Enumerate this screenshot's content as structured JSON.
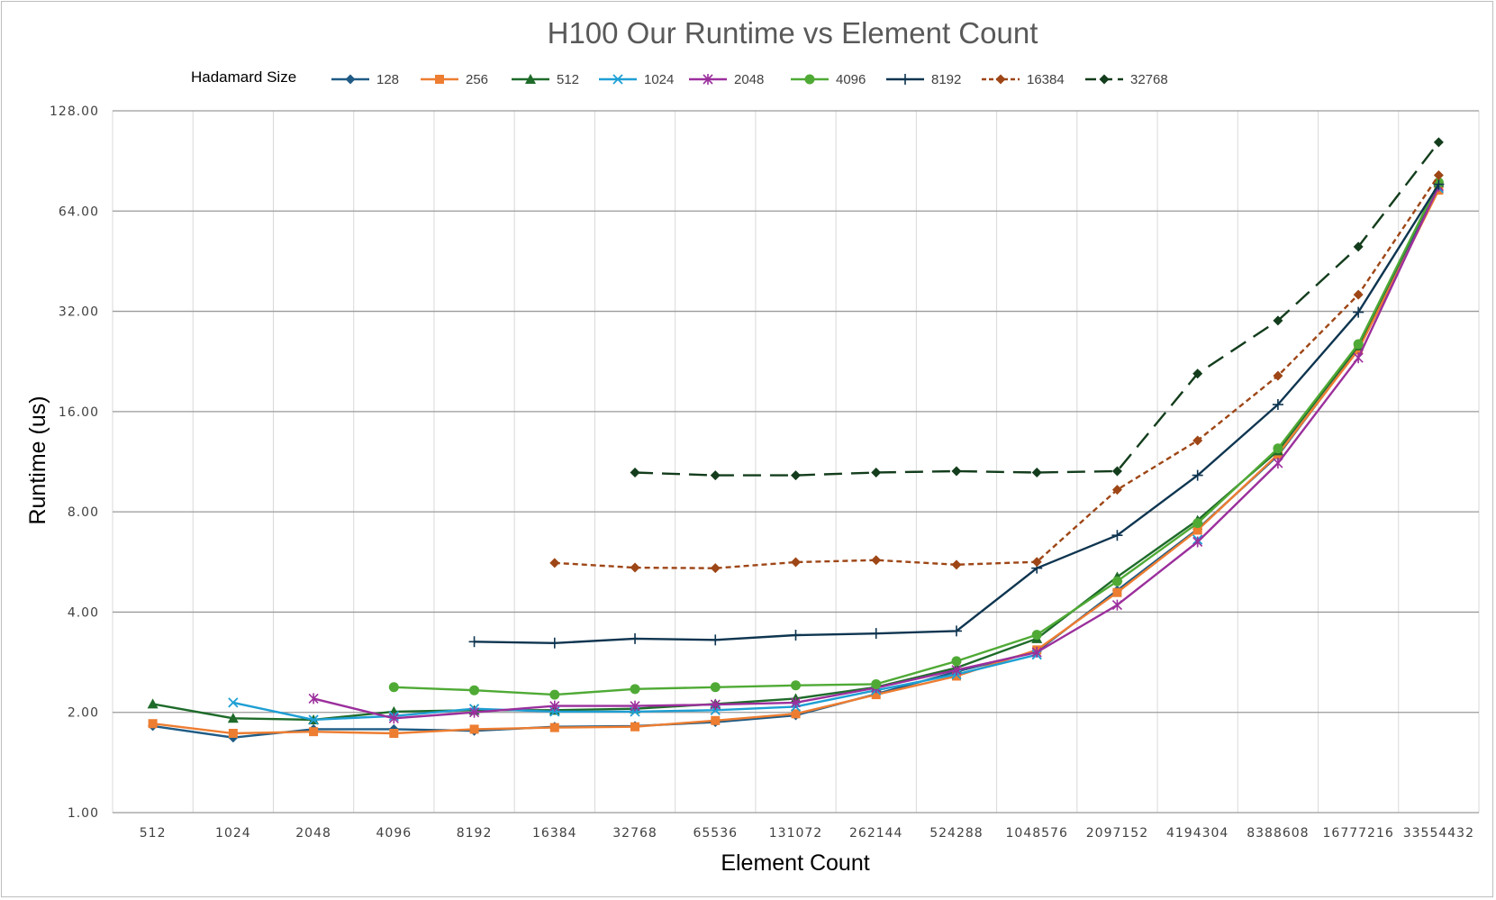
{
  "chart_data": {
    "type": "line",
    "title": "H100 Our Runtime vs Element Count",
    "xlabel": "Element Count",
    "ylabel": "Runtime (us)",
    "legend_title": "Hadamard Size",
    "legend_position": "top",
    "y_scale": "log2",
    "ylim": [
      1,
      128
    ],
    "y_ticks": [
      "1.00",
      "2.00",
      "4.00",
      "8.00",
      "16.00",
      "32.00",
      "64.00",
      "128.00"
    ],
    "y_tick_values": [
      1,
      2,
      4,
      8,
      16,
      32,
      64,
      128
    ],
    "categories": [
      "512",
      "1024",
      "2048",
      "4096",
      "8192",
      "16384",
      "32768",
      "65536",
      "131072",
      "262144",
      "524288",
      "1048576",
      "2097152",
      "4194304",
      "8388608",
      "16777216",
      "33554432"
    ],
    "grid": {
      "horizontal": true,
      "vertical": true
    },
    "series": [
      {
        "name": "128",
        "color": "#1f5b85",
        "marker": "diamond",
        "dash": "solid",
        "values": [
          1.82,
          1.68,
          1.78,
          1.78,
          1.76,
          1.81,
          1.82,
          1.87,
          1.96,
          2.27,
          2.65,
          3.05,
          4.65,
          7.1,
          11.8,
          24.7,
          76
        ]
      },
      {
        "name": "256",
        "color": "#ed7d31",
        "marker": "square",
        "dash": "solid",
        "values": [
          1.85,
          1.73,
          1.75,
          1.73,
          1.78,
          1.8,
          1.81,
          1.89,
          1.98,
          2.26,
          2.57,
          3.08,
          4.58,
          7.05,
          11.9,
          24.5,
          74
        ]
      },
      {
        "name": "512",
        "color": "#1e6b2a",
        "marker": "triangle",
        "dash": "solid",
        "values": [
          2.12,
          1.92,
          1.9,
          2.01,
          2.03,
          2.03,
          2.05,
          2.12,
          2.2,
          2.38,
          2.72,
          3.33,
          5.1,
          7.55,
          12.2,
          25.2,
          78
        ]
      },
      {
        "name": "1024",
        "color": "#1e9fd4",
        "marker": "x",
        "dash": "solid",
        "values": [
          null,
          2.14,
          1.9,
          1.95,
          2.05,
          2.01,
          2.01,
          2.03,
          2.08,
          2.33,
          2.6,
          2.98,
          null,
          6.6,
          null,
          null,
          75
        ]
      },
      {
        "name": "2048",
        "color": "#9b2f9c",
        "marker": "star",
        "dash": "solid",
        "values": [
          null,
          null,
          2.2,
          1.92,
          2.0,
          2.09,
          2.09,
          2.11,
          2.14,
          2.37,
          2.68,
          3.03,
          4.2,
          6.5,
          11.2,
          23.2,
          76
        ]
      },
      {
        "name": "4096",
        "color": "#4faa35",
        "marker": "circle",
        "dash": "solid",
        "values": [
          null,
          null,
          null,
          2.38,
          2.33,
          2.26,
          2.35,
          2.38,
          2.41,
          2.43,
          2.85,
          3.42,
          4.95,
          7.4,
          12.4,
          25.5,
          78
        ]
      },
      {
        "name": "8192",
        "color": "#0e3550",
        "marker": "plus",
        "dash": "solid",
        "values": [
          null,
          null,
          null,
          null,
          3.26,
          3.23,
          3.33,
          3.3,
          3.41,
          3.45,
          3.51,
          5.42,
          6.8,
          10.3,
          16.8,
          31.8,
          77
        ]
      },
      {
        "name": "16384",
        "color": "#9e4616",
        "marker": "diamond",
        "dash": "dashed",
        "values": [
          null,
          null,
          null,
          null,
          null,
          5.62,
          5.44,
          5.42,
          5.65,
          5.73,
          5.55,
          5.66,
          9.32,
          13.1,
          20.5,
          35.9,
          82
        ]
      },
      {
        "name": "32768",
        "color": "#133d1c",
        "marker": "diamond",
        "dash": "longdash",
        "values": [
          null,
          null,
          null,
          null,
          null,
          null,
          10.5,
          10.3,
          10.3,
          10.5,
          10.6,
          10.5,
          10.6,
          20.8,
          30.0,
          50.0,
          103
        ]
      }
    ]
  }
}
